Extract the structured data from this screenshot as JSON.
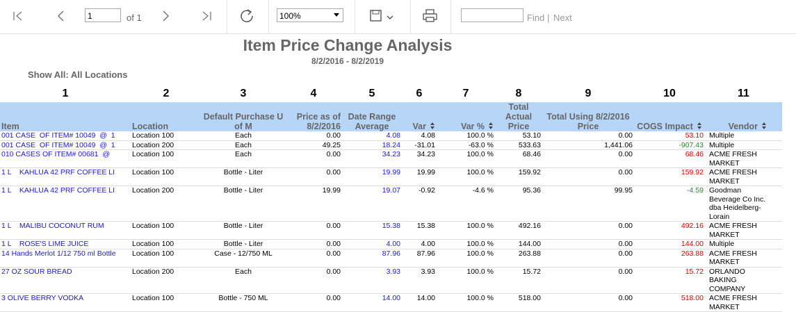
{
  "toolbar": {
    "page": "1",
    "page_count": "of 1",
    "zoom": "100%",
    "find": "Find",
    "separator": "|",
    "next": "Next"
  },
  "report": {
    "title": "Item Price Change Analysis",
    "date_range": "8/2/2016 - 8/2/2019",
    "filter": "Show All: All Locations",
    "column_numbers": [
      "1",
      "2",
      "3",
      "4",
      "5",
      "6",
      "7",
      "8",
      "9",
      "10",
      "11"
    ],
    "headers": [
      "Item",
      "Location",
      "Default Purchase U of M",
      "Price as of 8/2/2016",
      "Date Range Average",
      "Var",
      "Var %",
      "Total Actual Price",
      "Total Using 8/2/2016 Price",
      "COGS Impact",
      "Vendor"
    ],
    "rows": [
      [
        "001 CASE  OF ITEM# 10049  @  1",
        "Location 100",
        "Each",
        "0.00",
        "4.08",
        "4.08",
        "100.0 %",
        "53.10",
        "0.00",
        "53.10",
        "Multiple"
      ],
      [
        "001 CASE  OF ITEM# 10049  @  1",
        "Location 200",
        "Each",
        "49.25",
        "18.24",
        "-31.01",
        "-63.0 %",
        "533.63",
        "1,441.06",
        "-907.43",
        "Multiple"
      ],
      [
        "010 CASES OF ITEM# 00681  @",
        "Location 100",
        "Each",
        "0.00",
        "34.23",
        "34.23",
        "100.0 %",
        "68.46",
        "0.00",
        "68.46",
        "ACME FRESH MARKET"
      ],
      [
        "1 L    KAHLUA 42 PRF COFFEE LI",
        "Location 100",
        "Bottle - Liter",
        "0.00",
        "19.99",
        "19.99",
        "100.0 %",
        "159.92",
        "0.00",
        "159.92",
        "ACME FRESH MARKET"
      ],
      [
        "1 L    KAHLUA 42 PRF COFFEE LI",
        "Location 200",
        "Bottle - Liter",
        "19.99",
        "19.07",
        "-0.92",
        "-4.6 %",
        "95.36",
        "99.95",
        "-4.59",
        "Goodman Beverage Co Inc. dba Heidelberg- Lorain"
      ],
      [
        "1 L    MALIBU COCONUT RUM",
        "Location 100",
        "Bottle - Liter",
        "0.00",
        "15.38",
        "15.38",
        "100.0 %",
        "492.16",
        "0.00",
        "492.16",
        "ACME FRESH MARKET"
      ],
      [
        "1 L    ROSE'S LIME JUICE",
        "Location 100",
        "Bottle - Liter",
        "0.00",
        "4.00",
        "4.00",
        "100.0 %",
        "144.00",
        "0.00",
        "144.00",
        "Multiple"
      ],
      [
        "14 Hands Merlot 1/12 750 ml Bottle",
        "Location 100",
        "Case - 12/750 ML",
        "0.00",
        "87.96",
        "87.96",
        "100.0 %",
        "263.88",
        "0.00",
        "263.88",
        "ACME FRESH MARKET"
      ],
      [
        "27 OZ SOUR BREAD",
        "Location 200",
        "Each",
        "0.00",
        "3.93",
        "3.93",
        "100.0 %",
        "15.72",
        "0.00",
        "15.72",
        "ORLANDO BAKING COMPANY"
      ],
      [
        "3 OLIVE BERRY VODKA",
        "Location 100",
        "Bottle - 750 ML",
        "0.00",
        "14.00",
        "14.00",
        "100.0 %",
        "518.00",
        "0.00",
        "518.00",
        "ACME FRESH MARKET"
      ]
    ]
  }
}
